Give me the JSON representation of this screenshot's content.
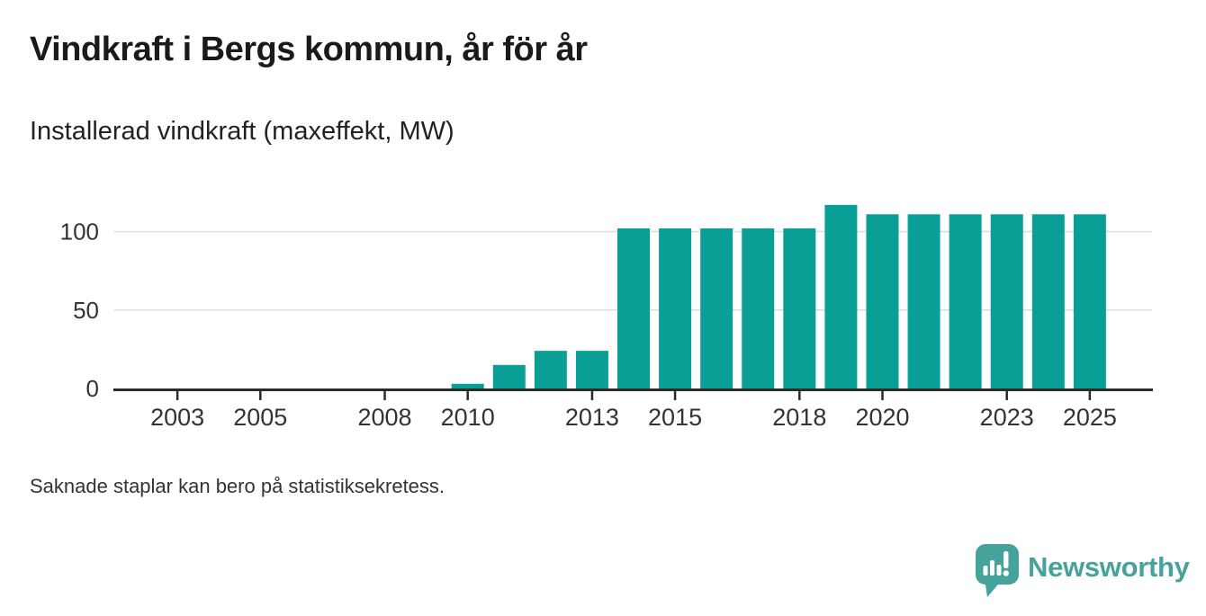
{
  "chart_data": {
    "type": "bar",
    "title": "Vindkraft i Bergs kommun, år för år",
    "subtitle": "Installerad vindkraft (maxeffekt, MW)",
    "series_name": "Installerad vindkraft (maxeffekt, MW)",
    "x": [
      2010,
      2011,
      2012,
      2013,
      2014,
      2015,
      2016,
      2017,
      2018,
      2019,
      2020,
      2021,
      2022,
      2023,
      2024,
      2025
    ],
    "values": [
      3,
      15,
      24,
      24,
      102,
      102,
      102,
      102,
      102,
      117,
      111,
      111,
      111,
      111,
      111,
      111
    ],
    "missing_years": [
      2002,
      2003,
      2004,
      2005,
      2006,
      2007,
      2008,
      2009
    ],
    "xticks": [
      2003,
      2005,
      2008,
      2010,
      2013,
      2015,
      2018,
      2020,
      2023,
      2025
    ],
    "yticks": [
      0,
      50,
      100
    ],
    "xlim": [
      2001.5,
      2026.5
    ],
    "ylim": [
      0,
      127
    ],
    "grid": "horizontal",
    "legend": "none",
    "bar_color": "#0a9f96",
    "note": "Saknade staplar kan bero på statistiksekretess."
  },
  "colors": {
    "bar": "#0a9f96",
    "axis": "#2b2b2b",
    "grid": "#dcdcdc",
    "text": "#333333",
    "title": "#1a1a1a",
    "brand": "#46a39b"
  },
  "footer": {
    "note": "Saknade staplar kan bero på statistiksekretess.",
    "brand": "Newsworthy",
    "logo_icon": "newsworthy-speech-bubble-bar-chart-icon"
  }
}
